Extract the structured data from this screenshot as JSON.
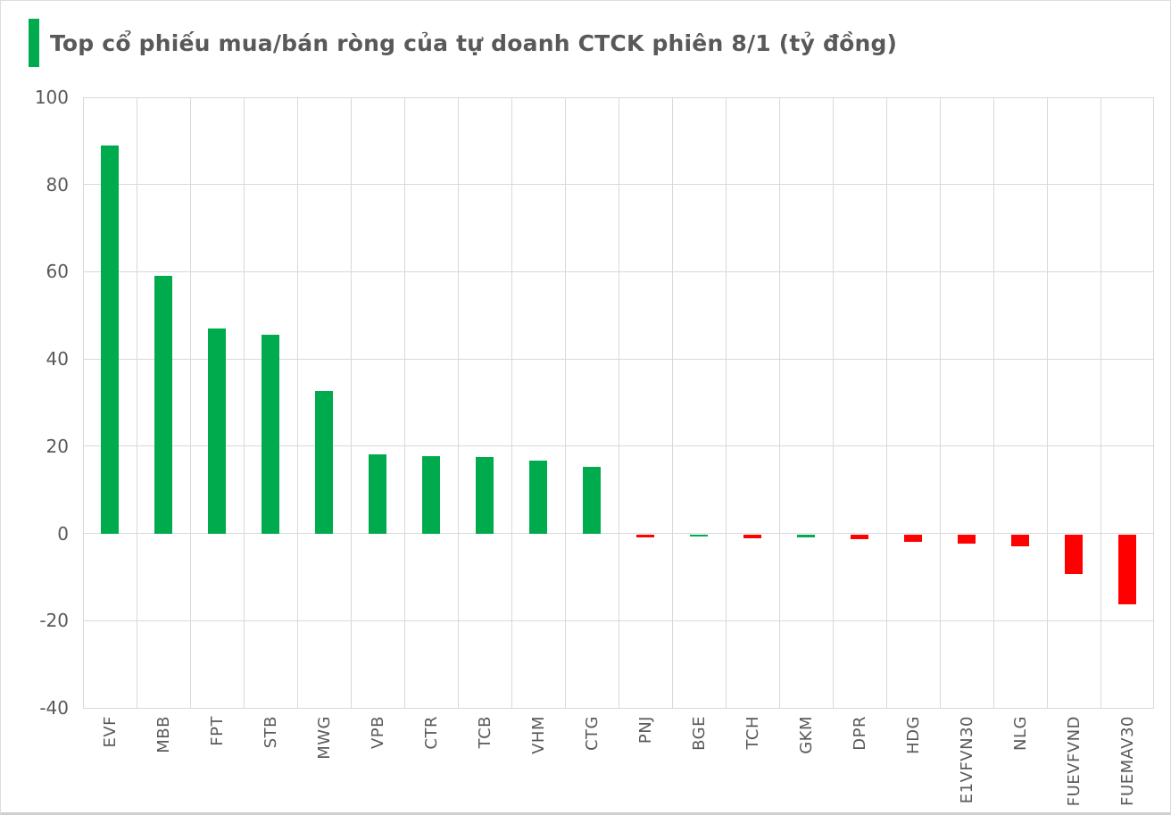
{
  "title": "Top cổ phiếu mua/bán ròng của tự doanh CTCK phiên 8/1 (tỷ đồng)",
  "accent_color": "#00AB4E",
  "text_color": "#595959",
  "gridline_color": "#d9d9d9",
  "chart_data": {
    "type": "bar",
    "title": "Top cổ phiếu mua/bán ròng của tự doanh CTCK phiên 8/1 (tỷ đồng)",
    "xlabel": "",
    "ylabel": "",
    "ylim": [
      -40,
      100
    ],
    "ytick_step": 20,
    "ytick_labels": [
      "100",
      "80",
      "60",
      "40",
      "20",
      "0",
      "-20",
      "-40"
    ],
    "grid": "both",
    "legend": "none",
    "categories": [
      "EVF",
      "MBB",
      "FPT",
      "STB",
      "MWG",
      "VPB",
      "CTR",
      "TCB",
      "VHM",
      "CTG",
      "PNJ",
      "BGE",
      "TCH",
      "GKM",
      "DPR",
      "HDG",
      "E1VFVN30",
      "NLG",
      "FUEVFVND",
      "FUEMAV30"
    ],
    "values": [
      89.0,
      59.0,
      47.0,
      45.5,
      32.6,
      18.2,
      17.7,
      17.5,
      16.6,
      15.2,
      -0.8,
      -0.5,
      -0.9,
      -0.7,
      -1.1,
      -1.7,
      -2.1,
      -2.8,
      -9.0,
      -16.0
    ],
    "bar_color_names": [
      "green",
      "green",
      "green",
      "green",
      "green",
      "green",
      "green",
      "green",
      "green",
      "green",
      "red",
      "green",
      "red",
      "green",
      "red",
      "red",
      "red",
      "red",
      "red",
      "red"
    ],
    "colors": {
      "green": "#00AB4E",
      "red": "#FF0000"
    }
  }
}
